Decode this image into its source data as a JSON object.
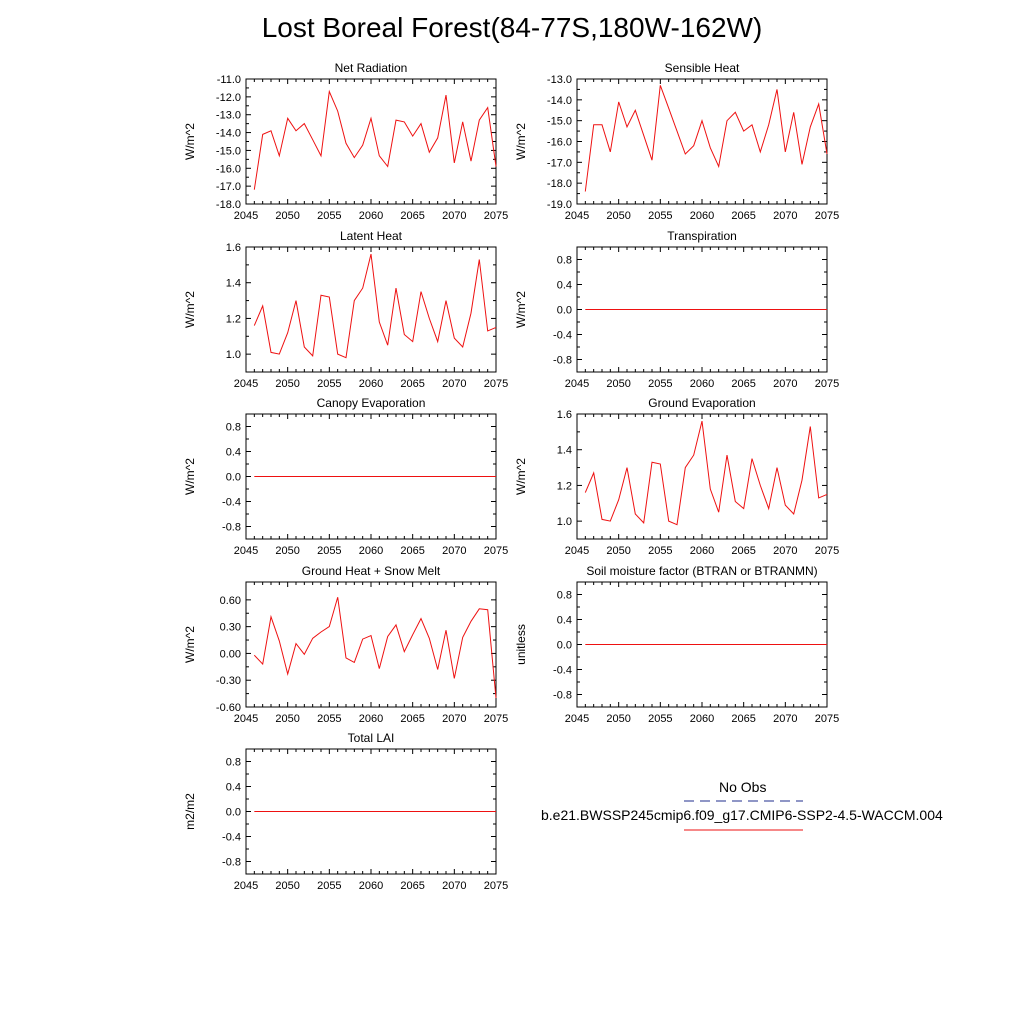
{
  "title": "Lost Boreal Forest(84-77S,180W-162W)",
  "legend": {
    "obs_label": "No Obs",
    "obs_color": "#1f2d8c",
    "model_label": "b.e21.BWSSP245cmip6.f09_g17.CMIP6-SSP2-4.5-WACCM.004",
    "model_color": "#ee1111"
  },
  "chart_data": [
    {
      "type": "line",
      "title": "Net Radiation",
      "ylabel": "W/m^2",
      "xlim": [
        2045,
        2075
      ],
      "ylim": [
        -18,
        -11
      ],
      "xticks": [
        2045,
        2050,
        2055,
        2060,
        2065,
        2070,
        2075
      ],
      "yticks": [
        -18,
        -17,
        -16,
        -15,
        -14,
        -13,
        -12,
        -11
      ],
      "ytick_labels": [
        "-18.0",
        "-17.0",
        "-16.0",
        "-15.0",
        "-14.0",
        "-13.0",
        "-12.0",
        "-11.0"
      ],
      "x": [
        2046,
        2047,
        2048,
        2049,
        2050,
        2051,
        2052,
        2053,
        2054,
        2055,
        2056,
        2057,
        2058,
        2059,
        2060,
        2061,
        2062,
        2063,
        2064,
        2065,
        2066,
        2067,
        2068,
        2069,
        2070,
        2071,
        2072,
        2073,
        2074,
        2075
      ],
      "values": [
        -17.2,
        -14.1,
        -13.9,
        -15.3,
        -13.2,
        -13.9,
        -13.5,
        -14.4,
        -15.3,
        -11.7,
        -12.8,
        -14.6,
        -15.4,
        -14.7,
        -13.2,
        -15.3,
        -15.9,
        -13.3,
        -13.4,
        -14.2,
        -13.5,
        -15.1,
        -14.3,
        -11.9,
        -15.7,
        -13.4,
        -15.6,
        -13.3,
        -12.6,
        -15.9
      ]
    },
    {
      "type": "line",
      "title": "Sensible Heat",
      "ylabel": "W/m^2",
      "xlim": [
        2045,
        2075
      ],
      "ylim": [
        -19,
        -13
      ],
      "xticks": [
        2045,
        2050,
        2055,
        2060,
        2065,
        2070,
        2075
      ],
      "yticks": [
        -19,
        -18,
        -17,
        -16,
        -15,
        -14,
        -13
      ],
      "ytick_labels": [
        "-19.0",
        "-18.0",
        "-17.0",
        "-16.0",
        "-15.0",
        "-14.0",
        "-13.0"
      ],
      "x": [
        2046,
        2047,
        2048,
        2049,
        2050,
        2051,
        2052,
        2053,
        2054,
        2055,
        2056,
        2057,
        2058,
        2059,
        2060,
        2061,
        2062,
        2063,
        2064,
        2065,
        2066,
        2067,
        2068,
        2069,
        2070,
        2071,
        2072,
        2073,
        2074,
        2075
      ],
      "values": [
        -18.4,
        -15.2,
        -15.2,
        -16.5,
        -14.1,
        -15.3,
        -14.5,
        -15.7,
        -16.9,
        -13.3,
        -14.4,
        -15.5,
        -16.6,
        -16.2,
        -15.0,
        -16.3,
        -17.2,
        -15.0,
        -14.6,
        -15.5,
        -15.2,
        -16.5,
        -15.2,
        -13.5,
        -16.5,
        -14.6,
        -17.1,
        -15.3,
        -14.2,
        -16.6
      ]
    },
    {
      "type": "line",
      "title": "Latent Heat",
      "ylabel": "W/m^2",
      "xlim": [
        2045,
        2075
      ],
      "ylim": [
        0.9,
        1.6
      ],
      "xticks": [
        2045,
        2050,
        2055,
        2060,
        2065,
        2070,
        2075
      ],
      "yticks": [
        1.0,
        1.2,
        1.4,
        1.6
      ],
      "ytick_labels": [
        "1.0",
        "1.2",
        "1.4",
        "1.6"
      ],
      "x": [
        2046,
        2047,
        2048,
        2049,
        2050,
        2051,
        2052,
        2053,
        2054,
        2055,
        2056,
        2057,
        2058,
        2059,
        2060,
        2061,
        2062,
        2063,
        2064,
        2065,
        2066,
        2067,
        2068,
        2069,
        2070,
        2071,
        2072,
        2073,
        2074,
        2075
      ],
      "values": [
        1.16,
        1.27,
        1.01,
        1.0,
        1.12,
        1.3,
        1.04,
        0.99,
        1.33,
        1.32,
        1.0,
        0.98,
        1.3,
        1.37,
        1.56,
        1.18,
        1.05,
        1.37,
        1.11,
        1.07,
        1.35,
        1.2,
        1.07,
        1.3,
        1.09,
        1.04,
        1.23,
        1.53,
        1.13,
        1.15
      ]
    },
    {
      "type": "line",
      "title": "Transpiration",
      "ylabel": "W/m^2",
      "xlim": [
        2045,
        2075
      ],
      "ylim": [
        -1,
        1
      ],
      "xticks": [
        2045,
        2050,
        2055,
        2060,
        2065,
        2070,
        2075
      ],
      "yticks": [
        -0.8,
        -0.4,
        0.0,
        0.4,
        0.8
      ],
      "ytick_labels": [
        "-0.8",
        "-0.4",
        "0.0",
        "0.4",
        "0.8"
      ],
      "x": [
        2046,
        2075
      ],
      "values": [
        0,
        0
      ]
    },
    {
      "type": "line",
      "title": "Canopy Evaporation",
      "ylabel": "W/m^2",
      "xlim": [
        2045,
        2075
      ],
      "ylim": [
        -1,
        1
      ],
      "xticks": [
        2045,
        2050,
        2055,
        2060,
        2065,
        2070,
        2075
      ],
      "yticks": [
        -0.8,
        -0.4,
        0.0,
        0.4,
        0.8
      ],
      "ytick_labels": [
        "-0.8",
        "-0.4",
        "0.0",
        "0.4",
        "0.8"
      ],
      "x": [
        2046,
        2075
      ],
      "values": [
        0,
        0
      ]
    },
    {
      "type": "line",
      "title": "Ground Evaporation",
      "ylabel": "W/m^2",
      "xlim": [
        2045,
        2075
      ],
      "ylim": [
        0.9,
        1.6
      ],
      "xticks": [
        2045,
        2050,
        2055,
        2060,
        2065,
        2070,
        2075
      ],
      "yticks": [
        1.0,
        1.2,
        1.4,
        1.6
      ],
      "ytick_labels": [
        "1.0",
        "1.2",
        "1.4",
        "1.6"
      ],
      "x": [
        2046,
        2047,
        2048,
        2049,
        2050,
        2051,
        2052,
        2053,
        2054,
        2055,
        2056,
        2057,
        2058,
        2059,
        2060,
        2061,
        2062,
        2063,
        2064,
        2065,
        2066,
        2067,
        2068,
        2069,
        2070,
        2071,
        2072,
        2073,
        2074,
        2075
      ],
      "values": [
        1.16,
        1.27,
        1.01,
        1.0,
        1.12,
        1.3,
        1.04,
        0.99,
        1.33,
        1.32,
        1.0,
        0.98,
        1.3,
        1.37,
        1.56,
        1.18,
        1.05,
        1.37,
        1.11,
        1.07,
        1.35,
        1.2,
        1.07,
        1.3,
        1.09,
        1.04,
        1.23,
        1.53,
        1.13,
        1.15
      ]
    },
    {
      "type": "line",
      "title": "Ground Heat + Snow Melt",
      "ylabel": "W/m^2",
      "xlim": [
        2045,
        2075
      ],
      "ylim": [
        -0.6,
        0.8
      ],
      "xticks": [
        2045,
        2050,
        2055,
        2060,
        2065,
        2070,
        2075
      ],
      "yticks": [
        -0.6,
        -0.3,
        0.0,
        0.3,
        0.6
      ],
      "ytick_labels": [
        "-0.60",
        "-0.30",
        "0.00",
        "0.30",
        "0.60"
      ],
      "x": [
        2046,
        2047,
        2048,
        2049,
        2050,
        2051,
        2052,
        2053,
        2054,
        2055,
        2056,
        2057,
        2058,
        2059,
        2060,
        2061,
        2062,
        2063,
        2064,
        2065,
        2066,
        2067,
        2068,
        2069,
        2070,
        2071,
        2072,
        2073,
        2074,
        2075
      ],
      "values": [
        -0.02,
        -0.12,
        0.41,
        0.14,
        -0.23,
        0.11,
        -0.01,
        0.17,
        0.24,
        0.3,
        0.63,
        -0.05,
        -0.1,
        0.16,
        0.2,
        -0.17,
        0.19,
        0.32,
        0.02,
        0.21,
        0.39,
        0.17,
        -0.18,
        0.26,
        -0.28,
        0.18,
        0.36,
        0.5,
        0.49,
        -0.5
      ]
    },
    {
      "type": "line",
      "title": "Soil moisture factor (BTRAN or BTRANMN)",
      "ylabel": "unitless",
      "xlim": [
        2045,
        2075
      ],
      "ylim": [
        -1,
        1
      ],
      "xticks": [
        2045,
        2050,
        2055,
        2060,
        2065,
        2070,
        2075
      ],
      "yticks": [
        -0.8,
        -0.4,
        0.0,
        0.4,
        0.8
      ],
      "ytick_labels": [
        "-0.8",
        "-0.4",
        "0.0",
        "0.4",
        "0.8"
      ],
      "x": [
        2046,
        2075
      ],
      "values": [
        0,
        0
      ]
    },
    {
      "type": "line",
      "title": "Total LAI",
      "ylabel": "m2/m2",
      "xlim": [
        2045,
        2075
      ],
      "ylim": [
        -1,
        1
      ],
      "xticks": [
        2045,
        2050,
        2055,
        2060,
        2065,
        2070,
        2075
      ],
      "yticks": [
        -0.8,
        -0.4,
        0.0,
        0.4,
        0.8
      ],
      "ytick_labels": [
        "-0.8",
        "-0.4",
        "0.0",
        "0.4",
        "0.8"
      ],
      "x": [
        2046,
        2075
      ],
      "values": [
        0,
        0
      ]
    }
  ]
}
